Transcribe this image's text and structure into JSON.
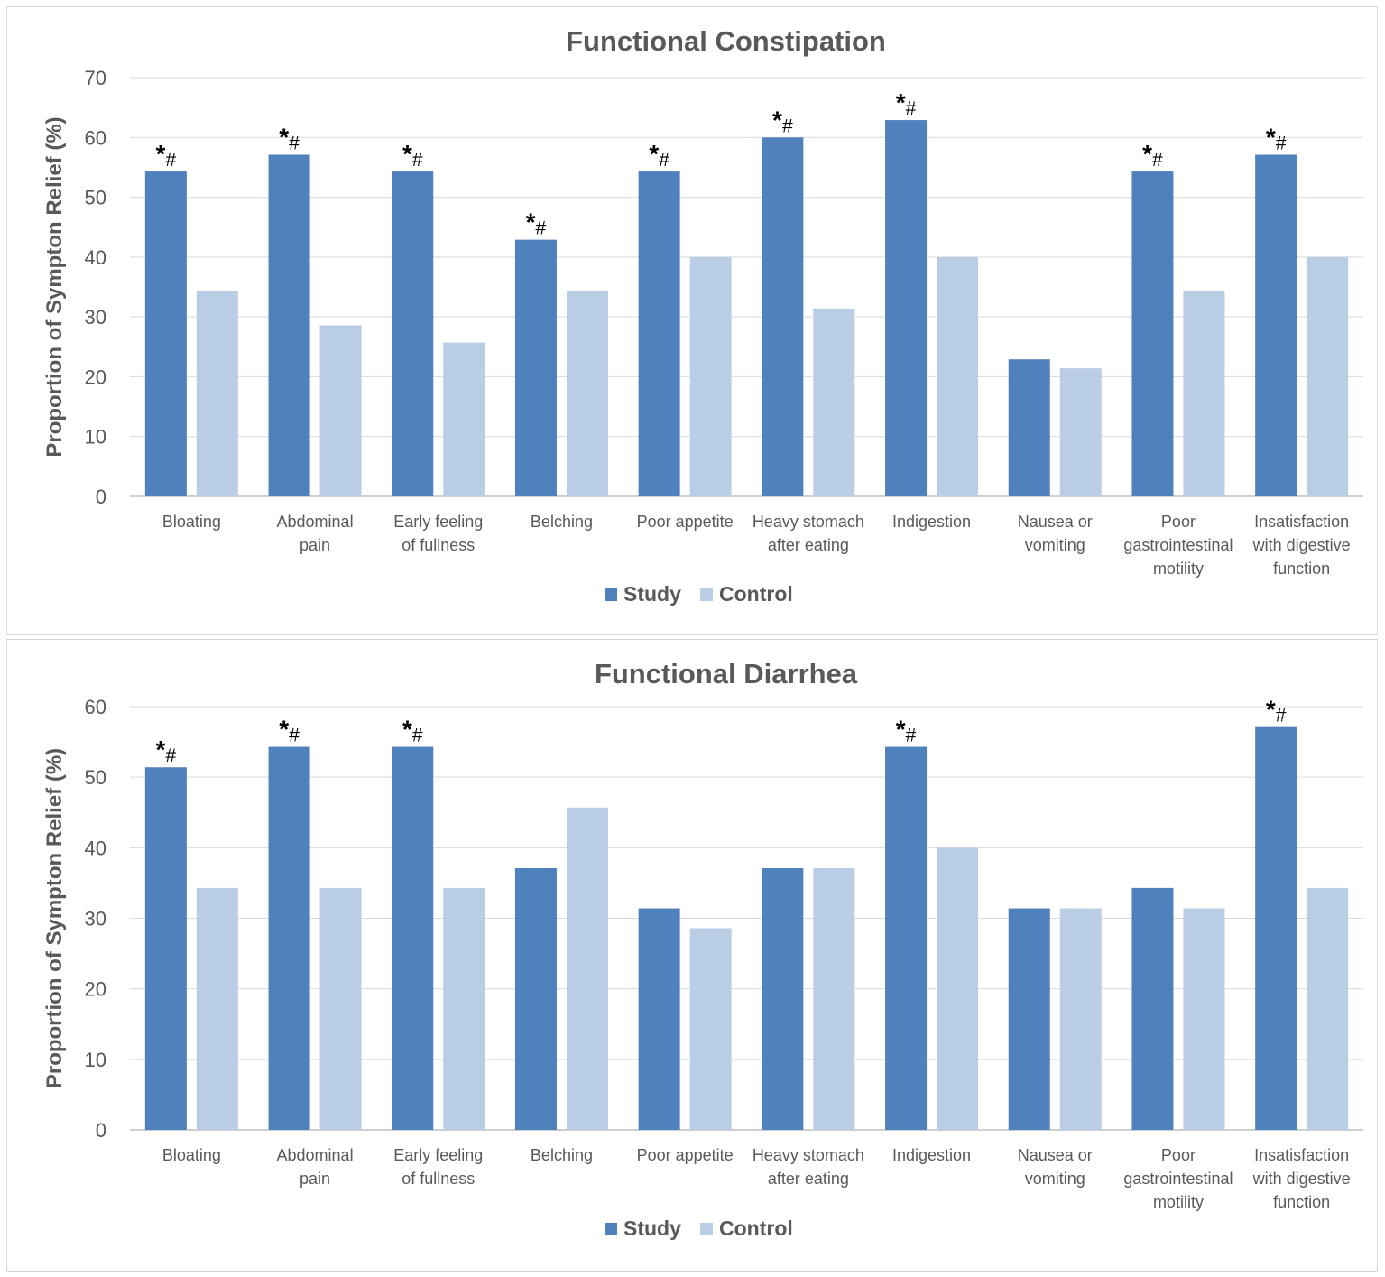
{
  "chart_data": [
    {
      "type": "bar",
      "title": "Functional Constipation",
      "ylabel": "Proportion  of Sympton Relief (%)",
      "xlabel": "",
      "ylim": [
        0,
        70
      ],
      "yticks": [
        0,
        10,
        20,
        30,
        40,
        50,
        60,
        70
      ],
      "categories": [
        [
          "Bloating"
        ],
        [
          "Abdominal",
          "pain"
        ],
        [
          "Early feeling",
          "of fullness"
        ],
        [
          "Belching"
        ],
        [
          "Poor appetite"
        ],
        [
          "Heavy stomach",
          "after eating"
        ],
        [
          "Indigestion"
        ],
        [
          "Nausea or",
          "vomiting"
        ],
        [
          "Poor",
          "gastrointestinal",
          "motility"
        ],
        [
          "Insatisfaction",
          "with digestive",
          "function"
        ]
      ],
      "series": [
        {
          "name": "Study",
          "color": "#4f81bd",
          "values": [
            54.3,
            57.1,
            54.3,
            42.9,
            54.3,
            60.0,
            62.9,
            22.9,
            54.3,
            57.1
          ]
        },
        {
          "name": "Control",
          "color": "#b9cde5",
          "values": [
            34.3,
            28.6,
            25.7,
            34.3,
            40.0,
            31.4,
            40.0,
            21.4,
            34.3,
            40.0
          ]
        }
      ],
      "significance": [
        "*#",
        "*#",
        "*#",
        "*#",
        "*#",
        "*#",
        "*#",
        "",
        "*#",
        "*#"
      ],
      "legend": "bottom",
      "grid": true
    },
    {
      "type": "bar",
      "title": "Functional Diarrhea",
      "ylabel": "Proportion  of Sympton Relief (%)",
      "xlabel": "",
      "ylim": [
        0,
        60
      ],
      "yticks": [
        0,
        10,
        20,
        30,
        40,
        50,
        60
      ],
      "categories": [
        [
          "Bloating"
        ],
        [
          "Abdominal",
          "pain"
        ],
        [
          "Early feeling",
          "of fullness"
        ],
        [
          "Belching"
        ],
        [
          "Poor appetite"
        ],
        [
          "Heavy stomach",
          "after eating"
        ],
        [
          "Indigestion"
        ],
        [
          "Nausea or",
          "vomiting"
        ],
        [
          "Poor",
          "gastrointestinal",
          "motility"
        ],
        [
          "Insatisfaction",
          "with digestive",
          "function"
        ]
      ],
      "series": [
        {
          "name": "Study",
          "color": "#4f81bd",
          "values": [
            51.4,
            54.3,
            54.3,
            37.1,
            31.4,
            37.1,
            54.3,
            31.4,
            34.3,
            57.1
          ]
        },
        {
          "name": "Control",
          "color": "#b9cde5",
          "values": [
            34.3,
            34.3,
            34.3,
            45.7,
            28.6,
            37.1,
            40.0,
            31.4,
            31.4,
            34.3
          ]
        }
      ],
      "significance": [
        "*#",
        "*#",
        "*#",
        "",
        "",
        "",
        "*#",
        "",
        "",
        "*#"
      ],
      "legend": "bottom",
      "grid": true
    }
  ]
}
